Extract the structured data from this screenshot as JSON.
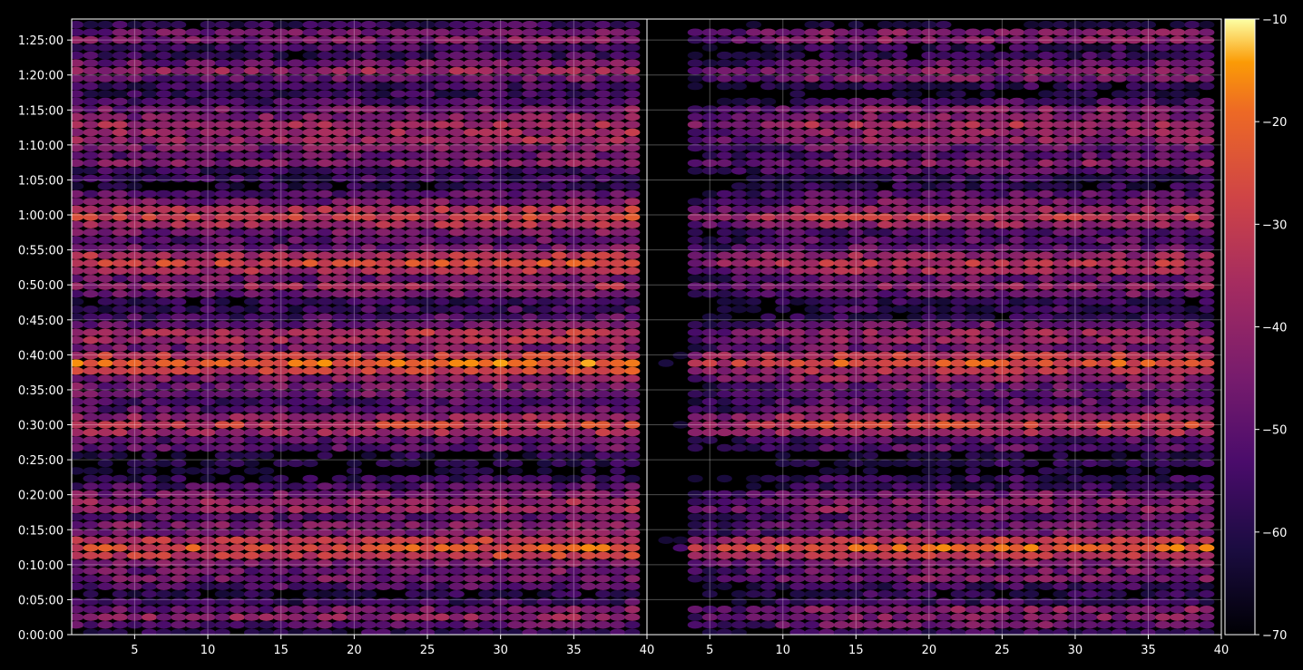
{
  "chart_data": {
    "type": "heatmap",
    "title": "",
    "panels": [
      {
        "name": "",
        "x_ticks": [
          5,
          10,
          15,
          20,
          25,
          30,
          35,
          40
        ],
        "x_range": [
          1,
          40
        ]
      },
      {
        "name": "",
        "x_ticks": [
          5,
          10,
          15,
          20,
          25,
          30,
          35,
          40
        ],
        "x_range": [
          1,
          40
        ]
      }
    ],
    "y_tick_labels": [
      "0:00:00",
      "0:05:00",
      "0:10:00",
      "0:15:00",
      "0:20:00",
      "0:25:00",
      "0:30:00",
      "0:35:00",
      "0:40:00",
      "0:45:00",
      "0:50:00",
      "0:55:00",
      "1:00:00",
      "1:05:00",
      "1:10:00",
      "1:15:00",
      "1:20:00",
      "1:25:00"
    ],
    "y_range_seconds": [
      0,
      5280
    ],
    "colorbar": {
      "min": -70,
      "max": -10,
      "ticks": [
        -10,
        -20,
        -30,
        -40,
        -50,
        -60,
        -70
      ],
      "tick_labels": [
        "−10",
        "−20",
        "−30",
        "−40",
        "−50",
        "−60",
        "−70"
      ],
      "colormap": "inferno"
    },
    "bands": [
      {
        "t_min": 12.2,
        "level": -22
      },
      {
        "t_min": 8.5,
        "level": -42
      },
      {
        "t_min": 18.3,
        "level": -38
      },
      {
        "t_min": 20.0,
        "level": -45
      },
      {
        "t_min": 30.0,
        "level": -30
      },
      {
        "t_min": 35.0,
        "level": -44
      },
      {
        "t_min": 37.5,
        "level": -36
      },
      {
        "t_min": 38.8,
        "level": -24
      },
      {
        "t_min": 42.8,
        "level": -34
      },
      {
        "t_min": 49.5,
        "level": -40
      },
      {
        "t_min": 53.2,
        "level": -30
      },
      {
        "t_min": 59.8,
        "level": -30
      },
      {
        "t_min": 61.5,
        "level": -42
      },
      {
        "t_min": 67.5,
        "level": -44
      },
      {
        "t_min": 71.0,
        "level": -36
      },
      {
        "t_min": 72.5,
        "level": -34
      },
      {
        "t_min": 75.0,
        "level": -44
      },
      {
        "t_min": 80.5,
        "level": -40
      },
      {
        "t_min": 85.5,
        "level": -40
      },
      {
        "t_min": 2.8,
        "level": -38
      }
    ],
    "grid": true
  }
}
